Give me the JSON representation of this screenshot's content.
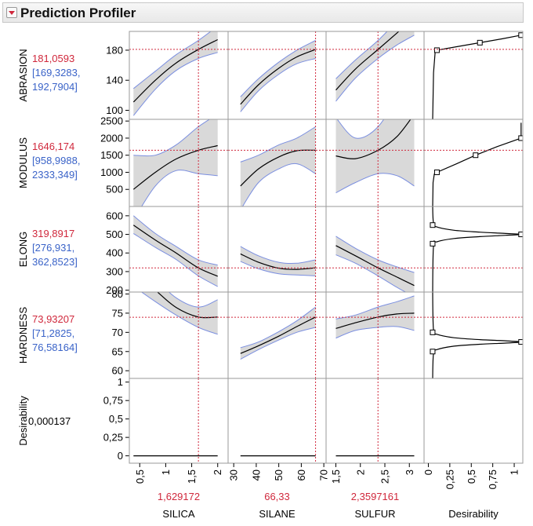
{
  "header": {
    "title": "Prediction Profiler",
    "menu_icon": "red-triangle-down-icon"
  },
  "colors": {
    "predicted": "#d0283c",
    "interval": "#3a63c8",
    "band_fill": "#d9d9d9",
    "band_edge": "#7b8fe0",
    "ref_line": "#d0283c",
    "curve": "#000000"
  },
  "chart_data": {
    "type": "line",
    "factors": [
      {
        "name": "SILICA",
        "current_label": "1,629172",
        "current": 1.629172,
        "xlim": [
          0.3,
          2.2
        ],
        "ticks": [
          0.5,
          1,
          1.5,
          2
        ],
        "tick_labels": [
          "0,5",
          "1",
          "1,5",
          "2"
        ],
        "x_range": [
          0.38,
          2.0
        ]
      },
      {
        "name": "SILANE",
        "current_label": "66,33",
        "current": 66.33,
        "xlim": [
          27.5,
          71
        ],
        "ticks": [
          30,
          40,
          50,
          60,
          70
        ],
        "tick_labels": [
          "30",
          "40",
          "50",
          "60",
          "70"
        ],
        "x_range": [
          33,
          66.33
        ]
      },
      {
        "name": "SULFUR",
        "current_label": "2,3597161",
        "current": 2.3597161,
        "xlim": [
          1.3,
          3.3
        ],
        "ticks": [
          1.5,
          2,
          2.5,
          3
        ],
        "tick_labels": [
          "1,5",
          "2",
          "2,5",
          "3"
        ],
        "x_range": [
          1.5,
          3.1
        ]
      }
    ],
    "desirability_axis": {
      "name": "Desirability",
      "xlim": [
        -0.05,
        1.1
      ],
      "ticks": [
        0,
        0.25,
        0.5,
        0.75,
        1
      ],
      "tick_labels": [
        "0",
        "0,25",
        "0,5",
        "0,75",
        "1"
      ]
    },
    "responses": [
      {
        "name": "ABRASION",
        "predicted": "181,0593",
        "interval": [
          "[169,3283,",
          "192,7904]"
        ],
        "current": 181.0593,
        "ylim": [
          88,
          205
        ],
        "ticks": [
          100,
          140,
          180
        ],
        "tick_labels": [
          "100",
          "140",
          "180"
        ],
        "profiles": [
          {
            "x": [
              0.38,
              0.8,
              1.2,
              1.629,
              2.0
            ],
            "y": [
              111,
              140,
              163,
              181,
              194
            ],
            "lower": [
              93,
              128,
              153,
              169,
              177
            ],
            "upper": [
              129,
              152,
              174,
              193,
              212
            ]
          },
          {
            "x": [
              33,
              41,
              50,
              58,
              66.33
            ],
            "y": [
              108,
              134,
              156,
              171,
              181
            ],
            "lower": [
              98,
              126,
              148,
              162,
              169
            ],
            "upper": [
              118,
              142,
              164,
              180,
              193
            ]
          },
          {
            "x": [
              1.5,
              1.9,
              2.36,
              2.75,
              3.1
            ],
            "y": [
              127,
              155,
              181,
              203,
              222
            ],
            "lower": [
              112,
              143,
              169,
              187,
              200
            ],
            "upper": [
              142,
              167,
              193,
              219,
              244
            ]
          }
        ],
        "desirability": {
          "x": [
            0.1,
            0.6,
            1.08
          ],
          "y": [
            180,
            190,
            200
          ],
          "curve_x": [
            0.05,
            0.06,
            0.08,
            0.1,
            0.35,
            0.6,
            0.85,
            1.08
          ],
          "curve_y": [
            88,
            150,
            178,
            180,
            185,
            190,
            195,
            200
          ]
        }
      },
      {
        "name": "MODULUS",
        "predicted": "1646,174",
        "interval": [
          "[958,9988,",
          "2333,349]"
        ],
        "current": 1646.174,
        "ylim": [
          0,
          2550
        ],
        "ticks": [
          500,
          1000,
          1500,
          2000,
          2500
        ],
        "tick_labels": [
          "500",
          "1000",
          "1500",
          "2000",
          "2500"
        ],
        "profiles": [
          {
            "x": [
              0.38,
              0.8,
              1.2,
              1.629,
              2.0
            ],
            "y": [
              500,
              1000,
              1390,
              1646,
              1780
            ],
            "lower": [
              -400,
              600,
              1050,
              959,
              900
            ],
            "upper": [
              1500,
              1500,
              1800,
              2333,
              2700
            ]
          },
          {
            "x": [
              33,
              41,
              50,
              58,
              66.33
            ],
            "y": [
              600,
              1100,
              1450,
              1630,
              1646
            ],
            "lower": [
              -100,
              700,
              1100,
              1250,
              959
            ],
            "upper": [
              1300,
              1500,
              1800,
              2000,
              2333
            ]
          },
          {
            "x": [
              1.5,
              1.9,
              2.36,
              2.75,
              3.1
            ],
            "y": [
              1480,
              1400,
              1646,
              2050,
              2700
            ],
            "lower": [
              400,
              700,
              959,
              900,
              600
            ],
            "upper": [
              2600,
              2000,
              2333,
              3300,
              4800
            ]
          }
        ],
        "desirability": {
          "x": [
            0.1,
            0.55,
            1.08
          ],
          "y": [
            1000,
            1500,
            2000
          ],
          "curve_x": [
            0.05,
            0.055,
            0.07,
            0.1,
            0.33,
            0.55,
            0.8,
            1.08,
            1.08
          ],
          "curve_y": [
            0,
            700,
            950,
            1000,
            1250,
            1500,
            1750,
            2000,
            2450
          ]
        }
      },
      {
        "name": "ELONG",
        "predicted": "319,8917",
        "interval": [
          "[276,931,",
          "362,8523]"
        ],
        "current": 319.8917,
        "ylim": [
          190,
          650
        ],
        "ticks": [
          200,
          300,
          400,
          500,
          600
        ],
        "tick_labels": [
          "200",
          "300",
          "400",
          "500",
          "600"
        ],
        "profiles": [
          {
            "x": [
              0.38,
              0.8,
              1.2,
              1.629,
              2.0
            ],
            "y": [
              550,
              470,
              400,
              320,
              275
            ],
            "lower": [
              505,
              430,
              365,
              277,
              220
            ],
            "upper": [
              600,
              505,
              435,
              363,
              335
            ]
          },
          {
            "x": [
              33,
              41,
              50,
              58,
              66.33
            ],
            "y": [
              395,
              350,
              318,
              312,
              320
            ],
            "lower": [
              355,
              315,
              288,
              282,
              277
            ],
            "upper": [
              435,
              385,
              350,
              345,
              363
            ]
          },
          {
            "x": [
              1.5,
              1.9,
              2.36,
              2.75,
              3.1
            ],
            "y": [
              440,
              385,
              320,
              270,
              225
            ],
            "lower": [
              390,
              345,
              277,
              215,
              165
            ],
            "upper": [
              490,
              425,
              363,
              325,
              295
            ]
          }
        ],
        "desirability": {
          "x": [
            0.05,
            1.08,
            0.05
          ],
          "y": [
            550,
            500,
            450
          ],
          "curve_x": [
            0.05,
            0.06,
            0.1,
            0.3,
            0.6,
            0.9,
            1.08,
            0.9,
            0.6,
            0.3,
            0.1,
            0.06,
            0.05
          ],
          "curve_y": [
            650,
            560,
            540,
            522,
            512,
            505,
            500,
            495,
            488,
            478,
            460,
            440,
            190
          ]
        }
      },
      {
        "name": "HARDNESS",
        "predicted": "73,93207",
        "interval": [
          "[71,2825,",
          "76,58164]"
        ],
        "current": 73.93207,
        "ylim": [
          58,
          80.5
        ],
        "ticks": [
          60,
          65,
          70,
          75,
          80
        ],
        "tick_labels": [
          "60",
          "65",
          "70",
          "75",
          "80"
        ],
        "profiles": [
          {
            "x": [
              0.38,
              0.8,
              1.2,
              1.629,
              2.0
            ],
            "y": [
              86,
              81,
              76.5,
              74,
              74
            ],
            "lower": [
              82,
              78,
              74.5,
              71.3,
              69.5
            ],
            "upper": [
              90,
              84,
              79,
              76.6,
              78.5
            ]
          },
          {
            "x": [
              33,
              41,
              50,
              58,
              66.33
            ],
            "y": [
              64.5,
              66.5,
              69,
              71.5,
              74
            ],
            "lower": [
              63,
              65.5,
              68,
              70,
              71.3
            ],
            "upper": [
              66,
              67.5,
              70.2,
              73,
              76.6
            ]
          },
          {
            "x": [
              1.5,
              1.9,
              2.36,
              2.75,
              3.1
            ],
            "y": [
              71,
              72.5,
              74,
              74.8,
              75
            ],
            "lower": [
              68.5,
              70.5,
              71.3,
              71.5,
              70.5
            ],
            "upper": [
              73.5,
              74.5,
              76.6,
              78,
              79.5
            ]
          }
        ],
        "desirability": {
          "x": [
            0.05,
            1.08,
            0.05
          ],
          "y": [
            70,
            67.5,
            65
          ],
          "curve_x": [
            0.05,
            0.06,
            0.1,
            0.3,
            0.6,
            0.9,
            1.08,
            0.9,
            0.6,
            0.3,
            0.1,
            0.06,
            0.05
          ],
          "curve_y": [
            80.5,
            70.5,
            69.5,
            68.6,
            68.1,
            67.8,
            67.5,
            67.2,
            66.9,
            66.4,
            65.5,
            64.5,
            58
          ]
        }
      },
      {
        "name": "Desirability",
        "predicted": "0,000137",
        "interval": [],
        "current": 0.000137,
        "ylim": [
          -0.1,
          1.05
        ],
        "ticks": [
          0,
          0.25,
          0.5,
          0.75,
          1
        ],
        "tick_labels": [
          "0",
          "0,25",
          "0,5",
          "0,75",
          "1"
        ],
        "profiles": [
          {
            "x": [
              0.38,
              2.0
            ],
            "y": [
              0.0,
              0.0
            ]
          },
          {
            "x": [
              33,
              66.33
            ],
            "y": [
              0.0,
              0.0
            ]
          },
          {
            "x": [
              1.5,
              3.1
            ],
            "y": [
              0.0,
              0.0
            ]
          }
        ],
        "desirability": null
      }
    ]
  }
}
